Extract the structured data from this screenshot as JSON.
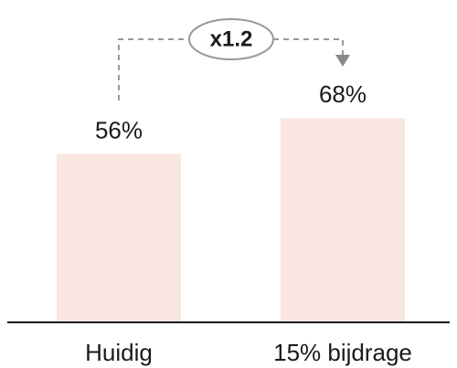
{
  "chart_data": {
    "type": "bar",
    "categories": [
      "Huidig",
      "15% bijdrage"
    ],
    "values": [
      56,
      68
    ],
    "value_labels": [
      "56%",
      "68%"
    ],
    "color": "#f9e6e1",
    "annotation": "x1.2"
  }
}
